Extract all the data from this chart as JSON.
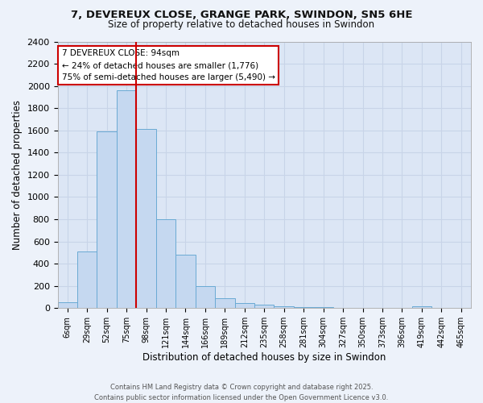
{
  "title_line1": "7, DEVEREUX CLOSE, GRANGE PARK, SWINDON, SN5 6HE",
  "title_line2": "Size of property relative to detached houses in Swindon",
  "xlabel": "Distribution of detached houses by size in Swindon",
  "ylabel": "Number of detached properties",
  "bin_labels": [
    "6sqm",
    "29sqm",
    "52sqm",
    "75sqm",
    "98sqm",
    "121sqm",
    "144sqm",
    "166sqm",
    "189sqm",
    "212sqm",
    "235sqm",
    "258sqm",
    "281sqm",
    "304sqm",
    "327sqm",
    "350sqm",
    "373sqm",
    "396sqm",
    "419sqm",
    "442sqm",
    "465sqm"
  ],
  "bar_values": [
    55,
    510,
    1590,
    1960,
    1610,
    800,
    480,
    195,
    88,
    43,
    28,
    15,
    10,
    10,
    0,
    0,
    0,
    0,
    18,
    0,
    0
  ],
  "bar_color": "#c5d8f0",
  "bar_edge_color": "#6aaad4",
  "vline_color": "#cc0000",
  "vline_pos": 3.5,
  "annotation_title": "7 DEVEREUX CLOSE: 94sqm",
  "annotation_line1": "← 24% of detached houses are smaller (1,776)",
  "annotation_line2": "75% of semi-detached houses are larger (5,490) →",
  "annotation_box_facecolor": "#ffffff",
  "annotation_box_edgecolor": "#cc0000",
  "ylim": [
    0,
    2400
  ],
  "yticks": [
    0,
    200,
    400,
    600,
    800,
    1000,
    1200,
    1400,
    1600,
    1800,
    2000,
    2200,
    2400
  ],
  "grid_color": "#c8d4e8",
  "plot_bg_color": "#dce6f5",
  "fig_bg_color": "#edf2fa",
  "footer_line1": "Contains HM Land Registry data © Crown copyright and database right 2025.",
  "footer_line2": "Contains public sector information licensed under the Open Government Licence v3.0."
}
